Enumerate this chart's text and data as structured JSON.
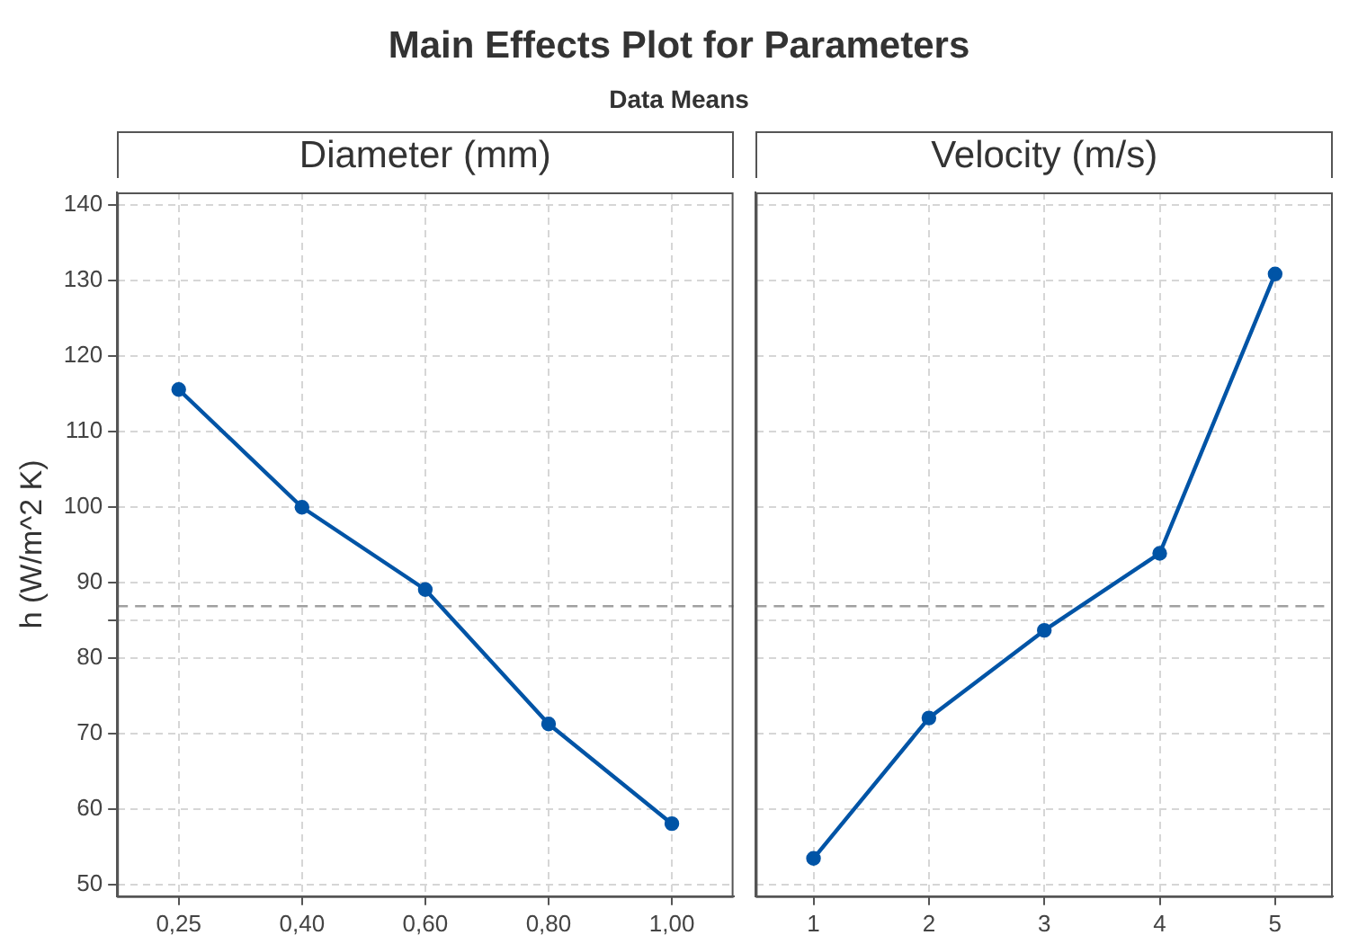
{
  "chart_data": [
    {
      "type": "line",
      "title": "Main Effects Plot for Parameters",
      "subtitle": "Data Means",
      "xlabel": "Diameter (mm)",
      "ylabel": "h (W/m^2 K)",
      "categories": [
        "0,25",
        "0,40",
        "0,60",
        "0,80",
        "1,00"
      ],
      "series": [
        {
          "color": "#0054a6",
          "values": [
            115.6,
            100.0,
            89.1,
            71.3,
            58.1
          ]
        }
      ],
      "ylim": [
        48.5,
        141.7
      ],
      "yticks": [
        50,
        60,
        70,
        80,
        {
          "value": 85,
          "label": null
        },
        90,
        100,
        110,
        120,
        130,
        140
      ],
      "ref_lines": [
        {
          "axis": "y",
          "value": 86.9,
          "color": "#a0a0a0",
          "line_style": "dashed"
        }
      ],
      "grid": true,
      "legend": false,
      "marker": "circle",
      "line_style": "solid"
    },
    {
      "type": "line",
      "xlabel": "Velocity (m/s)",
      "categories": [
        "1",
        "2",
        "3",
        "4",
        "5"
      ],
      "series": [
        {
          "color": "#0054a6",
          "values": [
            53.5,
            72.1,
            83.7,
            93.9,
            130.9
          ]
        }
      ],
      "ylim": [
        48.5,
        141.7
      ],
      "yticks": [
        50,
        60,
        70,
        80,
        {
          "value": 85,
          "label": null
        },
        90,
        100,
        110,
        120,
        130,
        140
      ],
      "ref_lines": [
        {
          "axis": "y",
          "value": 86.9,
          "color": "#a0a0a0",
          "line_style": "dashed"
        }
      ],
      "grid": true,
      "legend": false,
      "marker": "circle",
      "line_style": "solid",
      "tick_labels": "x"
    }
  ]
}
